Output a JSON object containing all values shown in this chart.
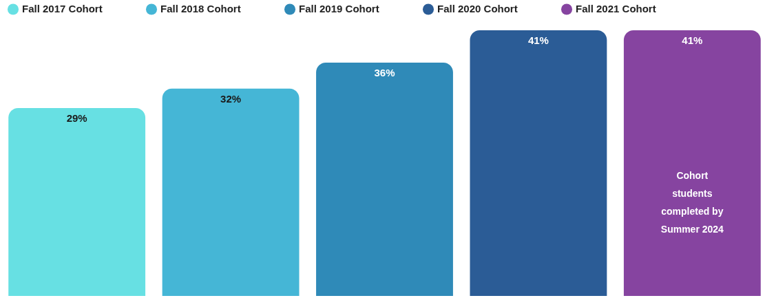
{
  "chart_data": {
    "type": "bar",
    "stacked": true,
    "categories": [
      null,
      null,
      null,
      null,
      null
    ],
    "series": [
      {
        "name": "Fall 2017 Cohort",
        "color": "#67e0e3",
        "values": [
          29,
          null,
          null,
          null,
          null
        ],
        "value_labels": [
          "29%",
          null,
          null,
          null,
          null
        ]
      },
      {
        "name": "Fall 2018 Cohort",
        "color": "#45b6d6",
        "values": [
          null,
          32,
          null,
          null,
          null
        ],
        "value_labels": [
          null,
          "32%",
          null,
          null,
          null
        ]
      },
      {
        "name": "Fall 2019 Cohort",
        "color": "#2f8ab8",
        "values": [
          null,
          null,
          36,
          null,
          null
        ],
        "value_labels": [
          null,
          null,
          "36%",
          null,
          null
        ]
      },
      {
        "name": "Fall 2020 Cohort",
        "color": "#2b5c96",
        "values": [
          null,
          null,
          null,
          41,
          null
        ],
        "value_labels": [
          null,
          null,
          null,
          "41%",
          null
        ]
      },
      {
        "name": "Fall 2021 Cohort",
        "color": "#8644a0",
        "values": [
          null,
          null,
          null,
          null,
          41
        ],
        "value_labels": [
          null,
          null,
          null,
          null,
          "41%"
        ]
      }
    ],
    "annotations": [
      "Cohort\nstudents\ncompleted by\nSummer 2024"
    ],
    "legend": "top",
    "tick_labels": false
  }
}
